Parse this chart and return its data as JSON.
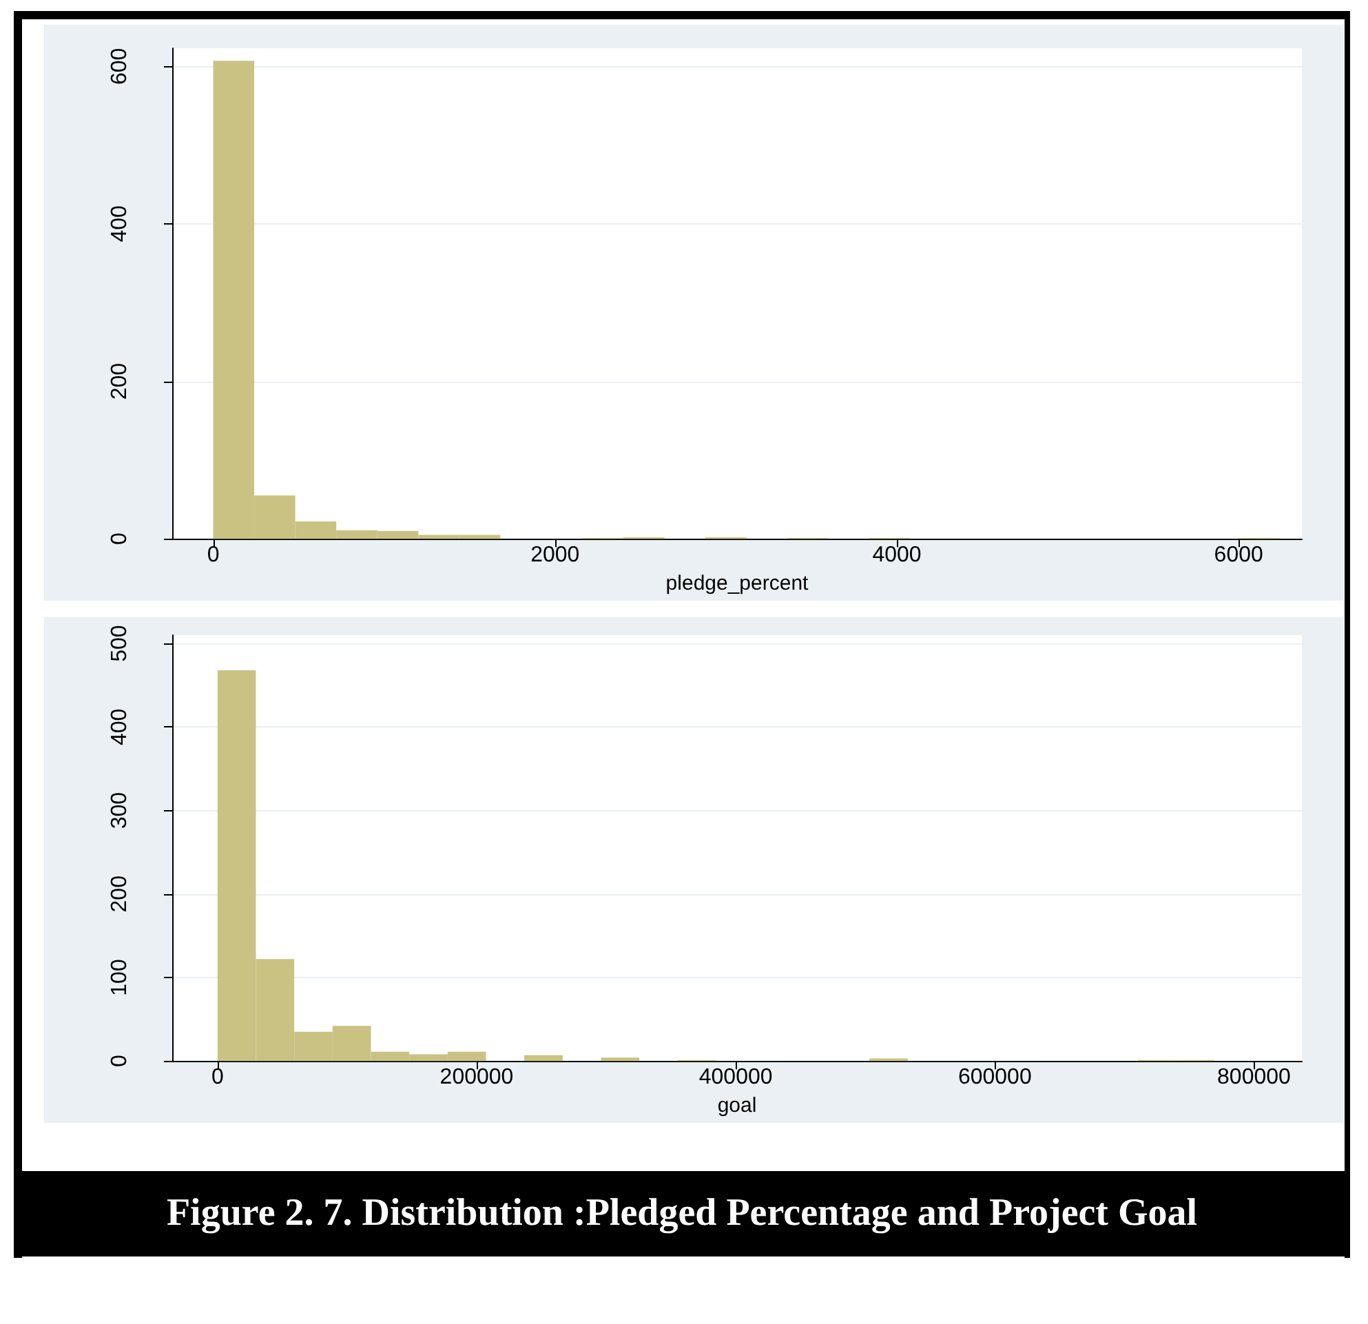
{
  "chart_data": [
    {
      "type": "histogram",
      "xlabel": "pledge_percent",
      "color": "#c9c283",
      "bins": [
        0,
        240,
        480,
        720,
        960,
        1200,
        1440,
        1680,
        1920,
        2160,
        2400,
        2640,
        2880,
        3120,
        3360,
        3600,
        3840,
        4080,
        4320,
        4560,
        4800,
        5040,
        5280,
        5520,
        5760,
        6000,
        6240
      ],
      "values": [
        607,
        55,
        22,
        11,
        10,
        5,
        5,
        0,
        0,
        1,
        2,
        0,
        2,
        0,
        1,
        0,
        1,
        0,
        0,
        0,
        0,
        0,
        0,
        0,
        0,
        1
      ],
      "xlim": [
        -240,
        6370
      ],
      "xticks": [
        0,
        2000,
        4000,
        6000
      ],
      "ylim": [
        0,
        623
      ],
      "yticks": [
        0,
        200,
        400,
        600
      ],
      "grid": "y"
    },
    {
      "type": "histogram",
      "xlabel": "goal",
      "color": "#c9c283",
      "bins": [
        0,
        29600,
        59200,
        88800,
        118400,
        148000,
        177600,
        207200,
        236800,
        266400,
        296000,
        325600,
        355200,
        384800,
        414400,
        444000,
        473600,
        503200,
        532800,
        562400,
        592000,
        621600,
        651200,
        680800,
        710400,
        740000,
        769600
      ],
      "values": [
        468,
        122,
        35,
        42,
        11,
        8,
        11,
        0,
        7,
        0,
        4,
        0,
        1,
        0,
        0,
        0,
        0,
        3,
        0,
        0,
        0,
        0,
        0,
        0,
        1,
        1
      ],
      "xlim": [
        -35000,
        837000
      ],
      "xticks": [
        0,
        200000,
        400000,
        600000,
        800000
      ],
      "ylim": [
        0,
        510
      ],
      "yticks": [
        0,
        100,
        200,
        300,
        400,
        500
      ],
      "grid": "y",
      "annotations": [
        "Figure 2. 7. Distribution :Pledged Percentage and Project Goal"
      ]
    }
  ]
}
